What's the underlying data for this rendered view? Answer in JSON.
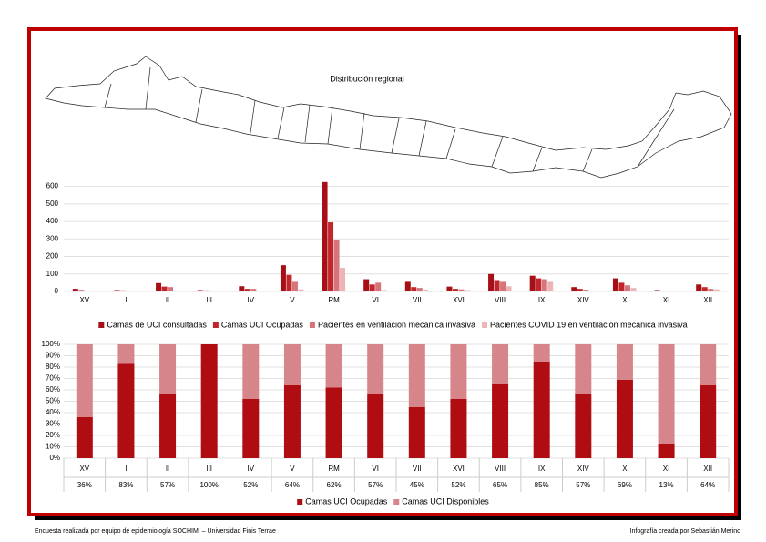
{
  "map_title": "Distribución regional",
  "chart_data": [
    {
      "type": "bar",
      "categories": [
        "XV",
        "I",
        "II",
        "III",
        "IV",
        "V",
        "RM",
        "VI",
        "VII",
        "XVI",
        "VIII",
        "IX",
        "XIV",
        "X",
        "XI",
        "XII"
      ],
      "series": [
        {
          "name": "Camas de UCI consultadas",
          "color": "#a50f15",
          "values": [
            15,
            8,
            48,
            8,
            30,
            150,
            625,
            70,
            55,
            28,
            100,
            90,
            25,
            75,
            8,
            40
          ]
        },
        {
          "name": "Camas UCI Ocupadas",
          "color": "#c0272d",
          "values": [
            8,
            6,
            28,
            6,
            15,
            95,
            395,
            40,
            25,
            15,
            65,
            75,
            15,
            50,
            2,
            25
          ]
        },
        {
          "name": "Pacientes en ventilación mecánica invasiva",
          "color": "#d6747a",
          "values": [
            5,
            3,
            25,
            5,
            15,
            55,
            295,
            50,
            20,
            12,
            55,
            70,
            10,
            35,
            1,
            15
          ]
        },
        {
          "name": "Pacientes COVID 19 en ventilación mecánica invasiva",
          "color": "#ebb5b7",
          "values": [
            3,
            2,
            5,
            2,
            3,
            12,
            135,
            8,
            10,
            8,
            30,
            55,
            5,
            20,
            1,
            12
          ]
        }
      ],
      "ylim": [
        0,
        650
      ],
      "yticks": [
        0,
        100,
        200,
        300,
        400,
        500,
        600
      ],
      "grid": true,
      "legend": "bottom"
    },
    {
      "type": "stacked_bar",
      "categories": [
        "XV",
        "I",
        "II",
        "III",
        "IV",
        "V",
        "RM",
        "VI",
        "VII",
        "XVI",
        "VIII",
        "IX",
        "XIV",
        "X",
        "XI",
        "XII"
      ],
      "series": [
        {
          "name": "Camas UCI Ocupadas",
          "color": "#b00d12",
          "values": [
            36,
            83,
            57,
            100,
            52,
            64,
            62,
            57,
            45,
            52,
            65,
            85,
            57,
            69,
            13,
            64
          ],
          "value_labels": [
            "36%",
            "83%",
            "57%",
            "100%",
            "52%",
            "64%",
            "62%",
            "57%",
            "45%",
            "52%",
            "65%",
            "85%",
            "57%",
            "69%",
            "13%",
            "64%"
          ]
        },
        {
          "name": "Camas UCI Disponibles",
          "color": "#d6868a",
          "values": [
            64,
            17,
            43,
            0,
            48,
            36,
            38,
            43,
            55,
            48,
            35,
            15,
            43,
            31,
            87,
            36
          ]
        }
      ],
      "ylim": [
        0,
        100
      ],
      "yticks": [
        {
          "value": 0,
          "label": "0%"
        },
        {
          "value": 10,
          "label": "10%"
        },
        {
          "value": 20,
          "label": "20%"
        },
        {
          "value": 30,
          "label": "30%"
        },
        {
          "value": 40,
          "label": "40%"
        },
        {
          "value": 50,
          "label": "50%"
        },
        {
          "value": 60,
          "label": "60%"
        },
        {
          "value": 70,
          "label": "70%"
        },
        {
          "value": 80,
          "label": "80%"
        },
        {
          "value": 90,
          "label": "90%"
        },
        {
          "value": 100,
          "label": "100%"
        }
      ],
      "grid": true,
      "legend": "bottom"
    }
  ],
  "footer": {
    "left": "Encuesta realizada por equipo de epidemiología SOCHIMI – Universidad Finis Terrae",
    "right": "Infografía creada por Sebastián Merino"
  }
}
